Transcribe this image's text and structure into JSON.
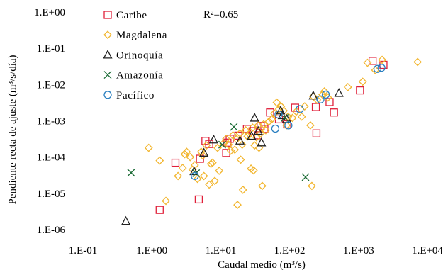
{
  "chart_data": {
    "type": "scatter",
    "xlabel": "Caudal medio (m³/s)",
    "ylabel": "Pendiente recta de ajuste (m³/s/día)",
    "xscale": "log",
    "yscale": "log",
    "xlim": [
      0.1,
      10000
    ],
    "ylim": [
      1e-06,
      1
    ],
    "x_ticks": [
      0.1,
      1,
      10,
      100,
      1000,
      10000
    ],
    "x_tick_labels": [
      "1.E-01",
      "1.E+00",
      "1.E+01",
      "1.E+02",
      "1.E+03",
      "1.E+04"
    ],
    "y_ticks": [
      1,
      0.1,
      0.01,
      0.001,
      0.0001,
      1e-05,
      1e-06
    ],
    "y_tick_labels": [
      "1.E+00",
      "1.E-01",
      "1.E-02",
      "1.E-03",
      "1.E-04",
      "1.E-05",
      "1.E-06"
    ],
    "grid": false,
    "legend_position": "top-left",
    "annotation": "R²=0.65",
    "series": [
      {
        "name": "Caribe",
        "marker": "square",
        "color": "#e0203a",
        "points": [
          [
            1.3,
            3.5e-06
          ],
          [
            2.2,
            7e-05
          ],
          [
            4.8,
            6.8e-06
          ],
          [
            5.0,
            9e-05
          ],
          [
            6.0,
            0.00028
          ],
          [
            6.8,
            0.00023
          ],
          [
            12,
            0.00013
          ],
          [
            12.5,
            0.00025
          ],
          [
            13.5,
            0.00032
          ],
          [
            18,
            0.00039
          ],
          [
            24,
            0.0006
          ],
          [
            29,
            0.00052
          ],
          [
            35,
            0.0004
          ],
          [
            38,
            0.00072
          ],
          [
            43,
            0.0006
          ],
          [
            52,
            0.0017
          ],
          [
            70,
            0.0011
          ],
          [
            92,
            0.0008
          ],
          [
            120,
            0.0023
          ],
          [
            240,
            0.0024
          ],
          [
            245,
            0.00045
          ],
          [
            380,
            0.0033
          ],
          [
            440,
            0.0017
          ],
          [
            1050,
            0.0069
          ],
          [
            1600,
            0.045
          ],
          [
            2300,
            0.035
          ]
        ]
      },
      {
        "name": "Magdalena",
        "marker": "diamond",
        "color": "#f2b630",
        "points": [
          [
            0.9,
            0.00018
          ],
          [
            1.6,
            6.2e-06
          ],
          [
            1.3,
            8e-05
          ],
          [
            2.4,
            3e-05
          ],
          [
            2.8,
            5e-05
          ],
          [
            3.0,
            0.00012
          ],
          [
            3.2,
            0.00014
          ],
          [
            3.6,
            0.0001
          ],
          [
            3.9,
            4.5e-05
          ],
          [
            4.2,
            6e-05
          ],
          [
            4.6,
            2.5e-05
          ],
          [
            5.2,
            0.00014
          ],
          [
            5.5,
            0.00011
          ],
          [
            5.7,
            3e-05
          ],
          [
            6.2,
            0.00021
          ],
          [
            6.8,
            1.75e-05
          ],
          [
            7.2,
            6.5e-05
          ],
          [
            7.6,
            7e-05
          ],
          [
            8.2,
            2.2e-05
          ],
          [
            9.0,
            0.00018
          ],
          [
            9.5,
            4.2e-05
          ],
          [
            11,
            0.00024
          ],
          [
            12,
            0.00032
          ],
          [
            13,
            0.00022
          ],
          [
            14,
            0.00015
          ],
          [
            15,
            0.0004
          ],
          [
            16,
            0.00016
          ],
          [
            17,
            0.00031
          ],
          [
            17.5,
            4.8e-06
          ],
          [
            19,
            0.00045
          ],
          [
            19.5,
            8.5e-05
          ],
          [
            20.5,
            0.00022
          ],
          [
            21,
            1.25e-05
          ],
          [
            23,
            0.00055
          ],
          [
            24.5,
            0.00037
          ],
          [
            26,
            0.00043
          ],
          [
            27.5,
            4.8e-05
          ],
          [
            29,
            0.00065
          ],
          [
            30,
            4.3e-05
          ],
          [
            31,
            0.00021
          ],
          [
            33,
            0.00035
          ],
          [
            35,
            0.00075
          ],
          [
            36,
            0.00018
          ],
          [
            38,
            0.00045
          ],
          [
            40,
            1.6e-05
          ],
          [
            42,
            0.0008
          ],
          [
            45,
            0.00055
          ],
          [
            50,
            0.00095
          ],
          [
            55,
            0.0011
          ],
          [
            60,
            0.0016
          ],
          [
            65,
            0.0032
          ],
          [
            70,
            0.0021
          ],
          [
            75,
            0.0025
          ],
          [
            82,
            0.0019
          ],
          [
            90,
            0.00075
          ],
          [
            95,
            0.0013
          ],
          [
            110,
            0.0012
          ],
          [
            125,
            0.0018
          ],
          [
            150,
            0.0013
          ],
          [
            165,
            0.0025
          ],
          [
            200,
            0.00075
          ],
          [
            210,
            1.6e-05
          ],
          [
            220,
            0.0047
          ],
          [
            250,
            0.0038
          ],
          [
            300,
            0.0053
          ],
          [
            320,
            0.0065
          ],
          [
            360,
            0.0044
          ],
          [
            700,
            0.0085
          ],
          [
            1150,
            0.012
          ],
          [
            1350,
            0.04
          ],
          [
            1750,
            0.025
          ],
          [
            2200,
            0.048
          ],
          [
            7200,
            0.042
          ]
        ]
      },
      {
        "name": "Orinoquía",
        "marker": "triangle",
        "color": "#222222",
        "points": [
          [
            0.42,
            1.7e-06
          ],
          [
            4.1,
            4e-05
          ],
          [
            5.7,
            0.00013
          ],
          [
            7.9,
            0.0003
          ],
          [
            19,
            0.00028
          ],
          [
            28,
            0.00038
          ],
          [
            31,
            0.0012
          ],
          [
            35,
            0.00052
          ],
          [
            39,
            0.00025
          ],
          [
            74,
            0.0019
          ],
          [
            78,
            0.0014
          ],
          [
            91,
            0.0011
          ],
          [
            220,
            0.0049
          ],
          [
            520,
            0.0058
          ]
        ]
      },
      {
        "name": "Amazonía",
        "marker": "x",
        "color": "#1b6b35",
        "points": [
          [
            0.5,
            3.7e-05
          ],
          [
            4.4,
            3.6e-05
          ],
          [
            10.5,
            0.00022
          ],
          [
            15.5,
            0.00068
          ],
          [
            85,
            0.0012
          ],
          [
            170,
            2.8e-05
          ]
        ]
      },
      {
        "name": "Pacífico",
        "marker": "circle",
        "color": "#2a7fc0",
        "points": [
          [
            4.2,
            3e-05
          ],
          [
            62,
            0.00061
          ],
          [
            69,
            0.0015
          ],
          [
            96,
            0.00075
          ],
          [
            140,
            0.0021
          ],
          [
            280,
            0.0039
          ],
          [
            335,
            0.0053
          ],
          [
            1880,
            0.027
          ],
          [
            2150,
            0.029
          ]
        ]
      }
    ]
  }
}
